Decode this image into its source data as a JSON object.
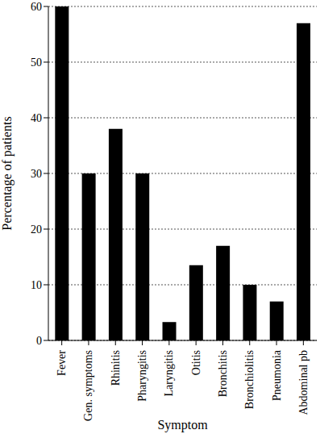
{
  "chart_data": {
    "type": "bar",
    "x_label": "Symptom",
    "y_label": "Percentage of patients",
    "categories": [
      "Fever",
      "Gen. symptoms",
      "Rhinitis",
      "Pharyngitis",
      "Laryngitis",
      "Otitis",
      "Bronchitis",
      "Bronchiolitis",
      "Pneumonia",
      "Abdominal pb"
    ],
    "values": [
      60,
      30,
      38,
      30,
      3.3,
      13.5,
      17,
      10,
      7,
      57
    ],
    "color": "#000000",
    "ylim": [
      0,
      60
    ],
    "yticks": [
      0,
      10,
      20,
      30,
      40,
      50,
      60
    ],
    "grid": true
  }
}
